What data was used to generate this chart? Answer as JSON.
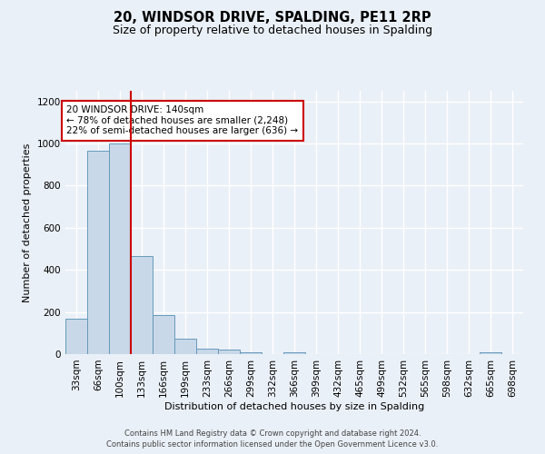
{
  "title": "20, WINDSOR DRIVE, SPALDING, PE11 2RP",
  "subtitle": "Size of property relative to detached houses in Spalding",
  "xlabel": "Distribution of detached houses by size in Spalding",
  "ylabel": "Number of detached properties",
  "bar_values": [
    170,
    965,
    1000,
    465,
    185,
    75,
    25,
    20,
    10,
    0,
    10,
    0,
    0,
    0,
    0,
    0,
    0,
    0,
    0,
    10,
    0
  ],
  "bar_labels": [
    "33sqm",
    "66sqm",
    "100sqm",
    "133sqm",
    "166sqm",
    "199sqm",
    "233sqm",
    "266sqm",
    "299sqm",
    "332sqm",
    "366sqm",
    "399sqm",
    "432sqm",
    "465sqm",
    "499sqm",
    "532sqm",
    "565sqm",
    "598sqm",
    "632sqm",
    "665sqm",
    "698sqm"
  ],
  "bar_color": "#c8d8e8",
  "bar_edge_color": "#6699bb",
  "red_line_x": 3,
  "red_line_color": "#cc0000",
  "annotation_text": "20 WINDSOR DRIVE: 140sqm\n← 78% of detached houses are smaller (2,248)\n22% of semi-detached houses are larger (636) →",
  "annotation_box_color": "#ffffff",
  "annotation_box_edge_color": "#cc0000",
  "ylim": [
    0,
    1250
  ],
  "yticks": [
    0,
    200,
    400,
    600,
    800,
    1000,
    1200
  ],
  "bg_color": "#eaf0f7",
  "grid_color": "#ffffff",
  "footer_line1": "Contains HM Land Registry data © Crown copyright and database right 2024.",
  "footer_line2": "Contains public sector information licensed under the Open Government Licence v3.0.",
  "title_fontsize": 10.5,
  "subtitle_fontsize": 9
}
